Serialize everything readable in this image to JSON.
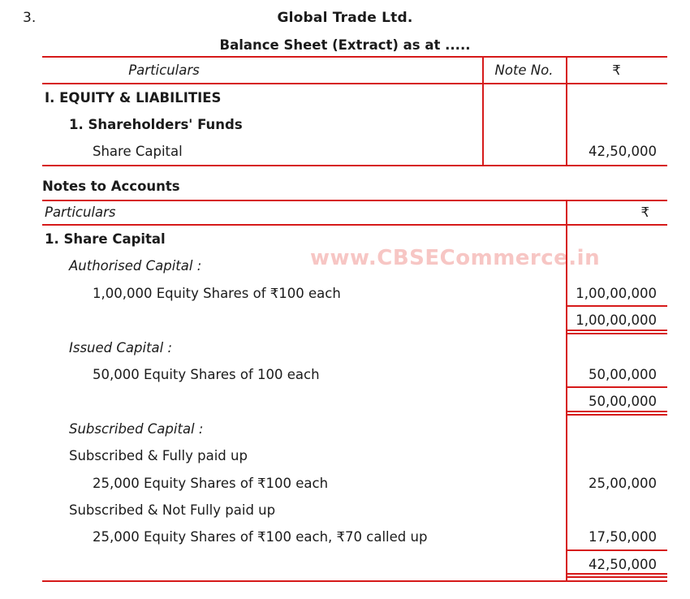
{
  "page": {
    "question_number": "3.",
    "company_title": "Global Trade Ltd.",
    "subtitle": "Balance Sheet (Extract) as at .....",
    "watermark": "www.CBSECommerce.in",
    "notes_heading": "Notes to Accounts"
  },
  "colors": {
    "border_red": "#d61a1a",
    "text": "#1b1b1b",
    "watermark_pink": "#f7c6c4"
  },
  "balance_sheet": {
    "headers": {
      "particulars": "Particulars",
      "note_no": "Note No.",
      "rupee": "₹"
    },
    "rows": [
      {
        "label": "I. EQUITY & LIABILITIES",
        "note": "",
        "amount": ""
      },
      {
        "label": "1. Shareholders' Funds",
        "note": "",
        "amount": ""
      },
      {
        "label": "Share Capital",
        "note": "",
        "amount": "42,50,000"
      }
    ]
  },
  "notes_table": {
    "headers": {
      "particulars": "Particulars",
      "rupee": "₹"
    },
    "rows": [
      {
        "label": "1. Share Capital",
        "amount": ""
      },
      {
        "label": "Authorised Capital :",
        "amount": ""
      },
      {
        "label": "1,00,000 Equity Shares of ₹100 each",
        "amount": "1,00,00,000"
      },
      {
        "label": "",
        "amount": "1,00,00,000"
      },
      {
        "label": "Issued Capital :",
        "amount": ""
      },
      {
        "label": "50,000 Equity Shares of 100 each",
        "amount": "50,00,000"
      },
      {
        "label": "",
        "amount": "50,00,000"
      },
      {
        "label": "Subscribed Capital :",
        "amount": ""
      },
      {
        "label": "Subscribed & Fully paid up",
        "amount": ""
      },
      {
        "label": "25,000 Equity Shares of ₹100 each",
        "amount": "25,00,000"
      },
      {
        "label": "Subscribed & Not Fully paid up",
        "amount": ""
      },
      {
        "label": "25,000 Equity Shares of ₹100 each, ₹70 called up",
        "amount": "17,50,000"
      },
      {
        "label": "",
        "amount": "42,50,000"
      }
    ]
  }
}
